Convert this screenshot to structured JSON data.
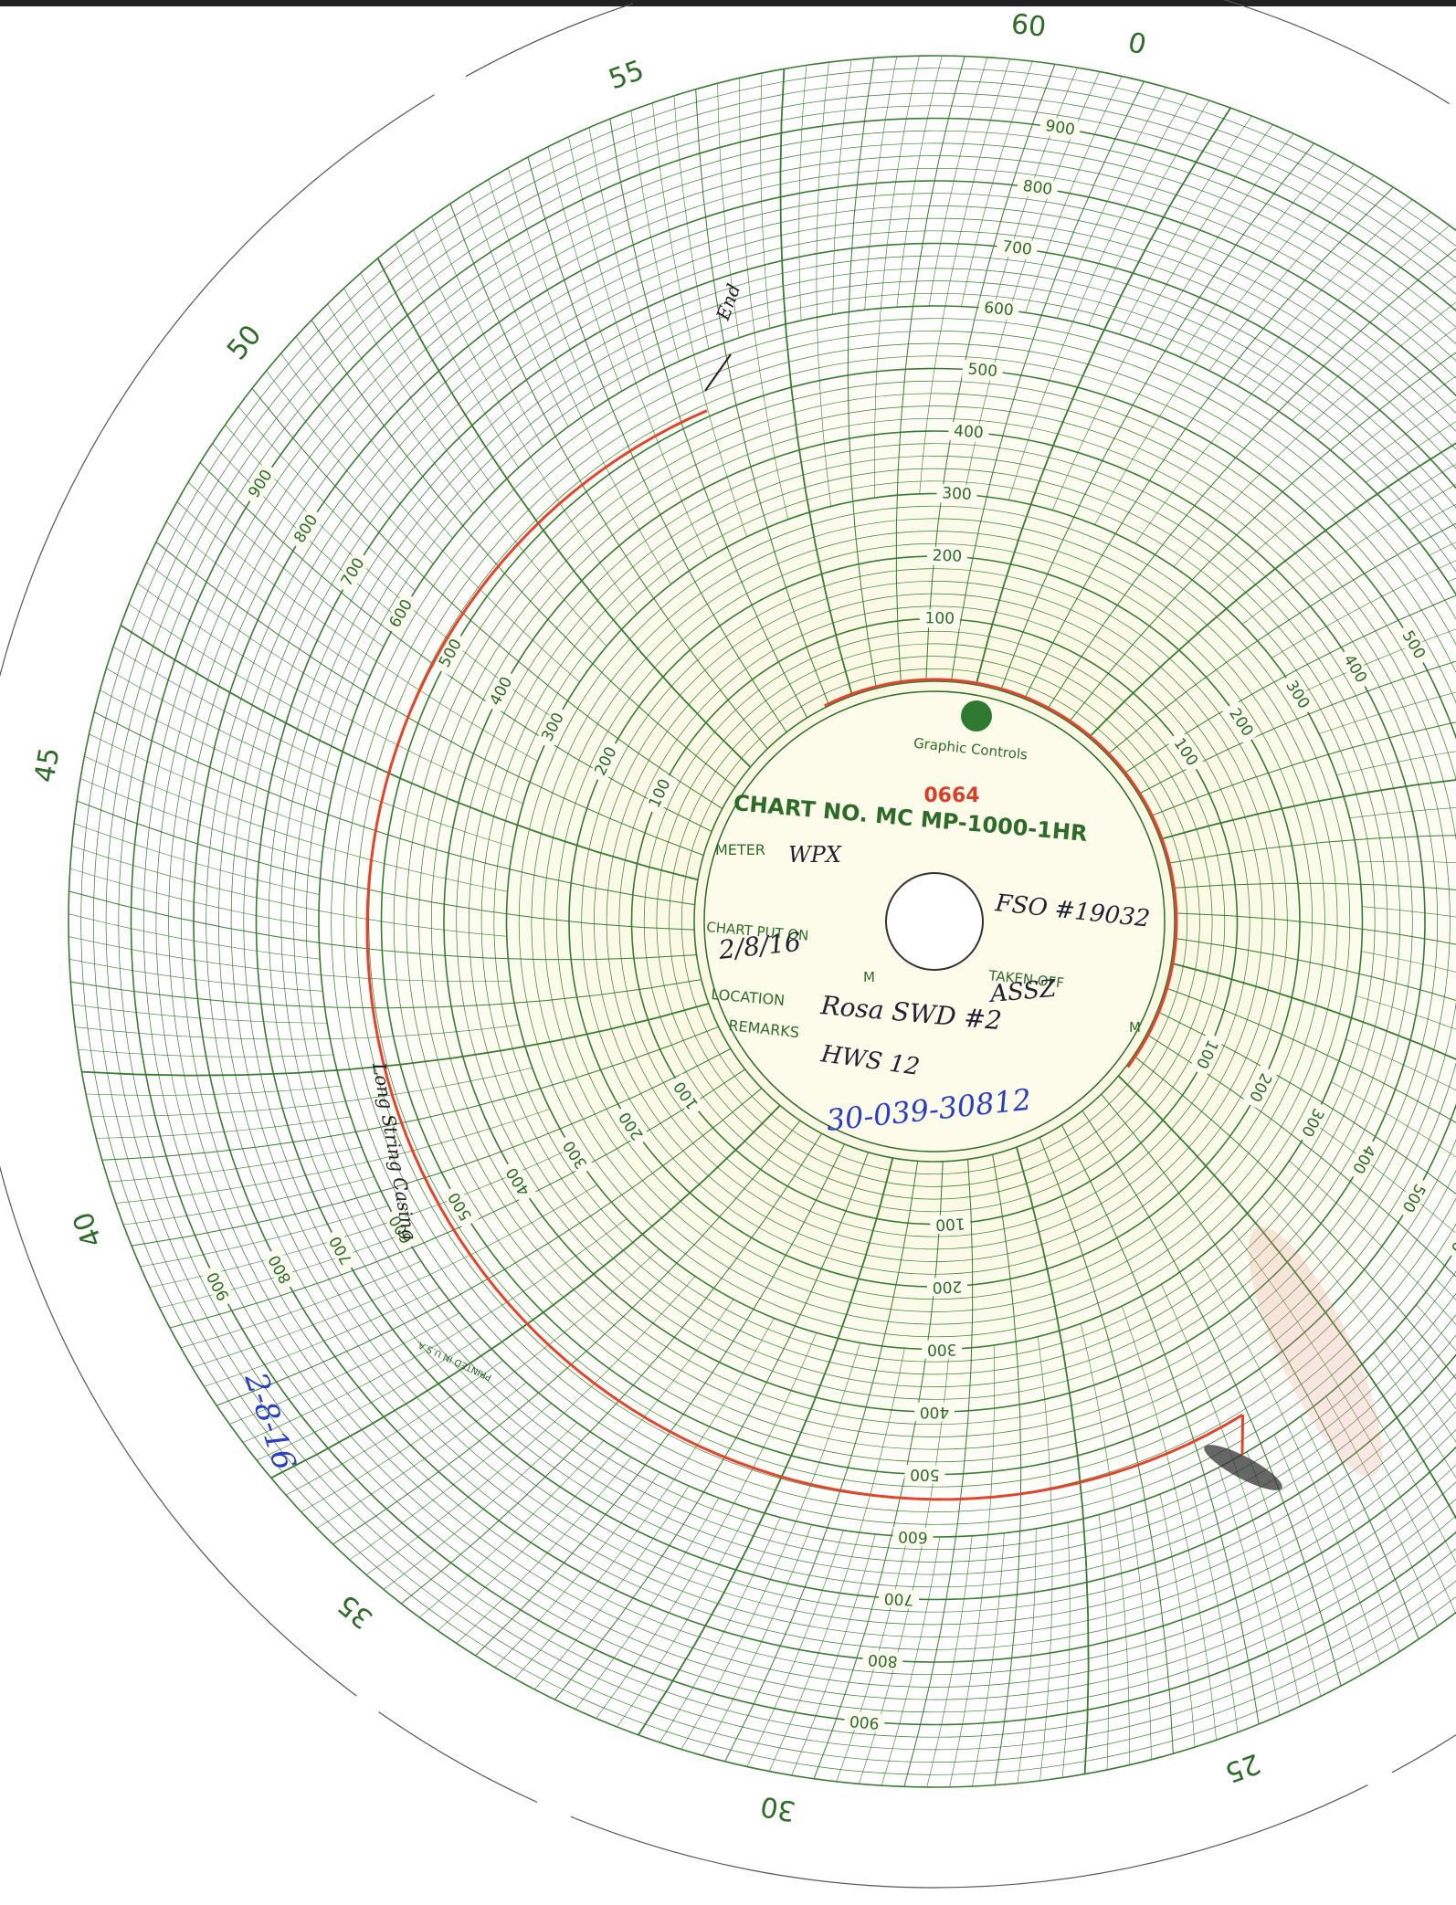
{
  "chart_paper": {
    "brand": "Graphic Controls",
    "serial": "0664",
    "chart_number": "CHART NO. MC MP-1000-1HR",
    "minute_labels": [
      60,
      0,
      55,
      50,
      45,
      40,
      35,
      30,
      25
    ],
    "pressure_labels": [
      100,
      200,
      300,
      400,
      500,
      600,
      700,
      800,
      900
    ],
    "form": {
      "meter": "METER",
      "chart_put_on": "CHART PUT ON",
      "m": "M",
      "taken_off": "TAKEN OFF",
      "location": "LOCATION",
      "remarks": "REMARKS",
      "printed": "PRINTED IN U.S.A."
    },
    "handwriting": {
      "meter": "WPX",
      "fso": "FSO #19032",
      "put_on_date": "2/8/16",
      "taken_off": "ASSZ",
      "location": "Rosa SWD #2",
      "remarks": "HWS 12",
      "api": "30-039-30812",
      "end": "End",
      "casing": "Long String Casing",
      "date": "2-8-16"
    }
  }
}
